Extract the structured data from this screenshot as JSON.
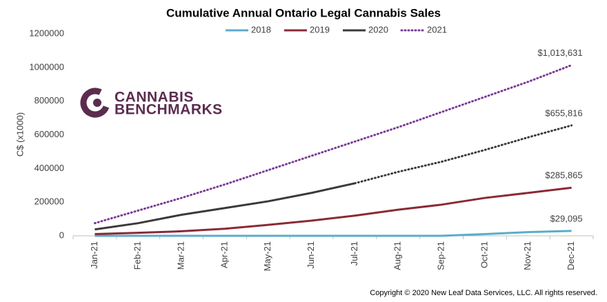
{
  "chart_data": {
    "type": "line",
    "title": "Cumulative Annual Ontario Legal Cannabis Sales",
    "y_label": "C$ (x1000)",
    "logo_text": [
      "CANNABIS",
      "BENCHMARKS"
    ],
    "copyright": "Copyright © 2020 New Leaf Data Services, LLC.  All rights reserved.",
    "categories": [
      "Jan-21",
      "Feb-21",
      "Mar-21",
      "Apr-21",
      "May-21",
      "Jun-21",
      "Jul-21",
      "Aug-21",
      "Sep-21",
      "Oct-21",
      "Nov-21",
      "Dec-21"
    ],
    "ylim": [
      0,
      1200000
    ],
    "yticks": [
      0,
      200000,
      400000,
      600000,
      800000,
      1000000,
      1200000
    ],
    "grid": false,
    "legend": "top",
    "series": [
      {
        "name": "2018",
        "color": "#5aaccc",
        "line_style": "solid",
        "values": [
          0,
          0,
          0,
          0,
          0,
          0,
          0,
          0,
          0,
          10000,
          22000,
          29095
        ],
        "value_labels": [
          null,
          null,
          null,
          null,
          null,
          null,
          null,
          null,
          null,
          null,
          null,
          "$29,095"
        ]
      },
      {
        "name": "2019",
        "color": "#8b2a35",
        "line_style": "solid",
        "values": [
          10000,
          18000,
          27000,
          42000,
          65000,
          90000,
          120000,
          155000,
          185000,
          225000,
          255000,
          285865
        ],
        "value_labels": [
          null,
          null,
          null,
          null,
          null,
          null,
          null,
          null,
          null,
          null,
          null,
          "$285,865"
        ]
      },
      {
        "name": "2020",
        "color": "#3a3a3a",
        "line_style": "solid",
        "dotted_from": 6,
        "values": [
          38000,
          75000,
          125000,
          165000,
          205000,
          255000,
          312000,
          380000,
          440000,
          510000,
          585000,
          655816
        ],
        "value_labels": [
          null,
          null,
          null,
          null,
          null,
          null,
          null,
          null,
          null,
          null,
          null,
          "$655,816"
        ]
      },
      {
        "name": "2021",
        "color": "#7a3a96",
        "line_style": "dotted",
        "values": [
          75000,
          150000,
          225000,
          305000,
          390000,
          475000,
          560000,
          645000,
          735000,
          825000,
          915000,
          1013631
        ],
        "value_labels": [
          null,
          null,
          null,
          null,
          null,
          null,
          null,
          null,
          null,
          null,
          null,
          "$1,013,631"
        ]
      }
    ]
  }
}
